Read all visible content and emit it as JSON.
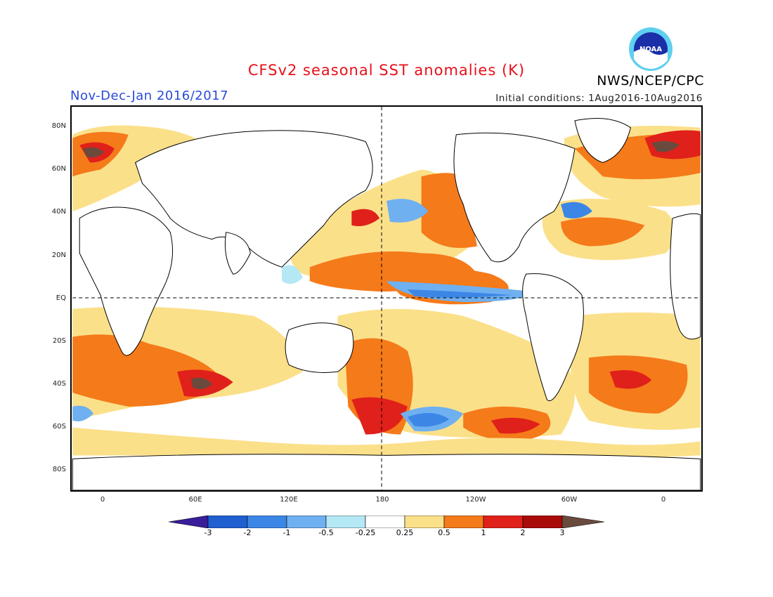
{
  "header": {
    "title": "CFSv2 seasonal SST anomalies (K)",
    "period": "Nov-Dec-Jan 2016/2017",
    "initial_conditions": "Initial conditions: 1Aug2016-10Aug2016",
    "agency": "NWS/NCEP/CPC",
    "logo_text": "NOAA"
  },
  "axes": {
    "latitude_labels": [
      "80N",
      "60N",
      "40N",
      "20N",
      "EQ",
      "20S",
      "40S",
      "60S",
      "80S"
    ],
    "longitude_labels": [
      "0",
      "60E",
      "120E",
      "180",
      "120W",
      "60W",
      "0"
    ]
  },
  "colorbar": {
    "labels": [
      "-3",
      "-2",
      "-1",
      "-0.5",
      "-0.25",
      "0.25",
      "0.5",
      "1",
      "2",
      "3"
    ],
    "colors": [
      "#3a1d9a",
      "#1f5fcf",
      "#3c86e6",
      "#6fb0f0",
      "#b4e8f4",
      "#ffffff",
      "#fbe08a",
      "#f57a1a",
      "#e0201a",
      "#a90a0a",
      "#6b4a3e"
    ]
  }
}
